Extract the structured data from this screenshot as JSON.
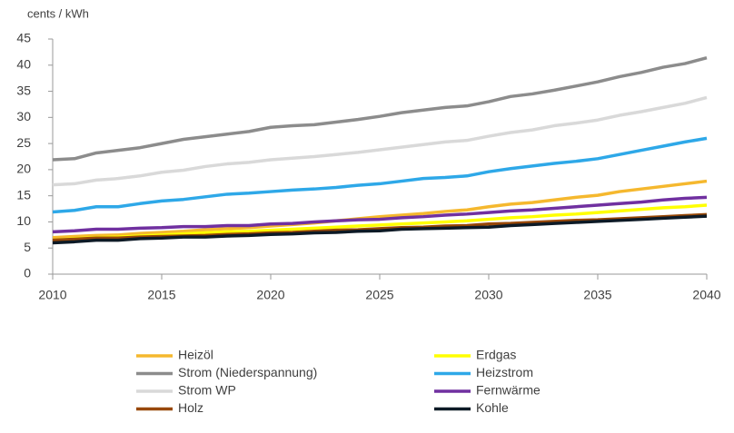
{
  "chart_data": {
    "type": "line",
    "y_label": "cents / kWh",
    "x": [
      2010,
      2011,
      2012,
      2013,
      2014,
      2015,
      2016,
      2017,
      2018,
      2019,
      2020,
      2021,
      2022,
      2023,
      2024,
      2025,
      2026,
      2027,
      2028,
      2029,
      2030,
      2031,
      2032,
      2033,
      2034,
      2035,
      2036,
      2037,
      2038,
      2039,
      2040
    ],
    "xlim": [
      2010,
      2040
    ],
    "xticks": [
      2010,
      2015,
      2020,
      2025,
      2030,
      2035,
      2040
    ],
    "ylim": [
      0,
      45
    ],
    "yticks": [
      0,
      5,
      10,
      15,
      20,
      25,
      30,
      35,
      40,
      45
    ],
    "grid": false,
    "series": [
      {
        "name": "Heizöl",
        "color": "#f5b82e",
        "values": [
          7.0,
          7.2,
          7.4,
          7.5,
          7.8,
          8.0,
          8.2,
          8.5,
          8.7,
          8.9,
          9.2,
          9.5,
          9.8,
          10.2,
          10.6,
          11.0,
          11.3,
          11.6,
          12.0,
          12.3,
          12.9,
          13.4,
          13.7,
          14.2,
          14.7,
          15.1,
          15.8,
          16.3,
          16.8,
          17.3,
          17.8
        ]
      },
      {
        "name": "Erdgas",
        "color": "#ffff00",
        "values": [
          6.5,
          6.8,
          7.0,
          7.1,
          7.3,
          7.5,
          7.7,
          7.9,
          8.1,
          8.2,
          8.4,
          8.6,
          8.8,
          9.0,
          9.2,
          9.4,
          9.6,
          9.8,
          10.0,
          10.2,
          10.5,
          10.8,
          11.0,
          11.3,
          11.5,
          11.8,
          12.1,
          12.4,
          12.7,
          12.9,
          13.2
        ]
      },
      {
        "name": "Strom (Niederspannung)",
        "color": "#8c8c8c",
        "values": [
          21.9,
          22.1,
          23.2,
          23.7,
          24.2,
          25.0,
          25.8,
          26.3,
          26.8,
          27.3,
          28.1,
          28.4,
          28.6,
          29.1,
          29.6,
          30.2,
          30.9,
          31.4,
          31.9,
          32.2,
          33.0,
          34.0,
          34.5,
          35.2,
          36.0,
          36.8,
          37.8,
          38.6,
          39.6,
          40.3,
          41.4
        ]
      },
      {
        "name": "Heizstrom",
        "color": "#2ea8e8",
        "values": [
          11.9,
          12.2,
          12.9,
          12.9,
          13.5,
          14.0,
          14.3,
          14.8,
          15.3,
          15.5,
          15.8,
          16.1,
          16.3,
          16.6,
          17.0,
          17.3,
          17.8,
          18.3,
          18.5,
          18.8,
          19.6,
          20.2,
          20.7,
          21.2,
          21.6,
          22.1,
          22.9,
          23.7,
          24.5,
          25.3,
          26.0
        ]
      },
      {
        "name": "Strom WP",
        "color": "#d9d9d9",
        "values": [
          17.1,
          17.3,
          18.0,
          18.3,
          18.8,
          19.5,
          19.9,
          20.6,
          21.1,
          21.4,
          21.9,
          22.2,
          22.5,
          22.9,
          23.3,
          23.8,
          24.3,
          24.8,
          25.3,
          25.6,
          26.4,
          27.1,
          27.6,
          28.4,
          28.9,
          29.5,
          30.4,
          31.1,
          31.9,
          32.7,
          33.8
        ]
      },
      {
        "name": "Fernwärme",
        "color": "#7030a0",
        "values": [
          8.1,
          8.3,
          8.6,
          8.6,
          8.8,
          8.9,
          9.1,
          9.1,
          9.3,
          9.3,
          9.6,
          9.7,
          10.0,
          10.2,
          10.4,
          10.5,
          10.8,
          11.0,
          11.3,
          11.5,
          11.8,
          12.1,
          12.3,
          12.6,
          12.9,
          13.2,
          13.5,
          13.8,
          14.2,
          14.5,
          14.7
        ]
      },
      {
        "name": "Holz",
        "color": "#984807",
        "values": [
          6.5,
          6.7,
          6.9,
          6.9,
          7.1,
          7.2,
          7.3,
          7.4,
          7.6,
          7.7,
          7.9,
          8.0,
          8.2,
          8.4,
          8.5,
          8.7,
          8.9,
          9.0,
          9.2,
          9.3,
          9.6,
          9.7,
          9.9,
          10.1,
          10.3,
          10.4,
          10.6,
          10.8,
          11.0,
          11.2,
          11.4
        ]
      },
      {
        "name": "Kohle",
        "color": "#0d1a26",
        "values": [
          6.0,
          6.2,
          6.5,
          6.5,
          6.8,
          6.9,
          7.1,
          7.1,
          7.3,
          7.4,
          7.6,
          7.7,
          7.9,
          8.0,
          8.2,
          8.3,
          8.6,
          8.7,
          8.8,
          8.9,
          9.0,
          9.3,
          9.5,
          9.7,
          9.9,
          10.1,
          10.3,
          10.5,
          10.7,
          10.9,
          11.1
        ]
      }
    ]
  }
}
